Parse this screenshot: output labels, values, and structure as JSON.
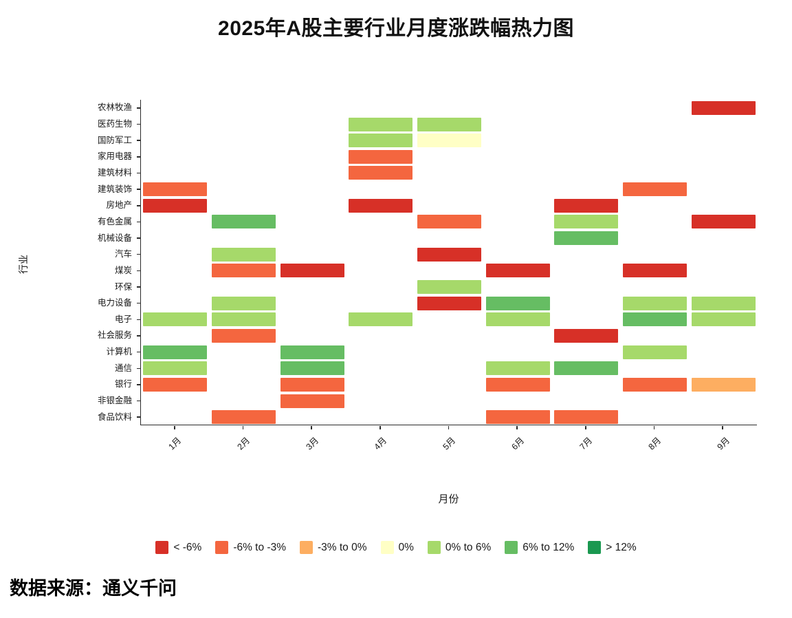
{
  "page": {
    "title": "2025年A股主要行业月度涨跌幅热力图",
    "source_note": "数据来源：通义千问"
  },
  "chart_data": {
    "type": "heatmap",
    "title": "2025年A股主要行业月度涨跌幅热力图",
    "xlabel": "月份",
    "ylabel": "行业",
    "x_categories": [
      "1月",
      "2月",
      "3月",
      "4月",
      "5月",
      "6月",
      "7月",
      "8月",
      "9月"
    ],
    "y_categories": [
      "农林牧渔",
      "医药生物",
      "国防军工",
      "家用电器",
      "建筑材料",
      "建筑装饰",
      "房地产",
      "有色金属",
      "机械设备",
      "汽车",
      "煤炭",
      "环保",
      "电力设备",
      "电子",
      "社会服务",
      "计算机",
      "通信",
      "银行",
      "非银金融",
      "食品饮料"
    ],
    "legend_position": "bottom",
    "grid": false,
    "empty_cell_color": "#ffffff",
    "legend": [
      {
        "label": "< -6%",
        "color": "#d73027"
      },
      {
        "label": "-6% to -3%",
        "color": "#f4663f"
      },
      {
        "label": "-3% to 0%",
        "color": "#fdae61"
      },
      {
        "label": "0%",
        "color": "#ffffc5"
      },
      {
        "label": "0% to 6%",
        "color": "#a6d96a"
      },
      {
        "label": "6% to 12%",
        "color": "#66bd63"
      },
      {
        "label": "> 12%",
        "color": "#1a9850"
      }
    ],
    "cells": [
      {
        "industry": "农林牧渔",
        "month": "9月",
        "range": "< -6%"
      },
      {
        "industry": "医药生物",
        "month": "4月",
        "range": "0% to 6%"
      },
      {
        "industry": "医药生物",
        "month": "5月",
        "range": "0% to 6%"
      },
      {
        "industry": "国防军工",
        "month": "4月",
        "range": "0% to 6%"
      },
      {
        "industry": "国防军工",
        "month": "5月",
        "range": "0%"
      },
      {
        "industry": "家用电器",
        "month": "4月",
        "range": "-6% to -3%"
      },
      {
        "industry": "建筑材料",
        "month": "4月",
        "range": "-6% to -3%"
      },
      {
        "industry": "建筑装饰",
        "month": "1月",
        "range": "-6% to -3%"
      },
      {
        "industry": "建筑装饰",
        "month": "8月",
        "range": "-6% to -3%"
      },
      {
        "industry": "房地产",
        "month": "1月",
        "range": "< -6%"
      },
      {
        "industry": "房地产",
        "month": "4月",
        "range": "< -6%"
      },
      {
        "industry": "房地产",
        "month": "7月",
        "range": "< -6%"
      },
      {
        "industry": "有色金属",
        "month": "2月",
        "range": "6% to 12%"
      },
      {
        "industry": "有色金属",
        "month": "5月",
        "range": "-6% to -3%"
      },
      {
        "industry": "有色金属",
        "month": "7月",
        "range": "0% to 6%"
      },
      {
        "industry": "有色金属",
        "month": "9月",
        "range": "< -6%"
      },
      {
        "industry": "机械设备",
        "month": "7月",
        "range": "6% to 12%"
      },
      {
        "industry": "汽车",
        "month": "2月",
        "range": "0% to 6%"
      },
      {
        "industry": "汽车",
        "month": "5月",
        "range": "< -6%"
      },
      {
        "industry": "煤炭",
        "month": "2月",
        "range": "-6% to -3%"
      },
      {
        "industry": "煤炭",
        "month": "3月",
        "range": "< -6%"
      },
      {
        "industry": "煤炭",
        "month": "6月",
        "range": "< -6%"
      },
      {
        "industry": "煤炭",
        "month": "8月",
        "range": "< -6%"
      },
      {
        "industry": "环保",
        "month": "5月",
        "range": "0% to 6%"
      },
      {
        "industry": "电力设备",
        "month": "2月",
        "range": "0% to 6%"
      },
      {
        "industry": "电力设备",
        "month": "5月",
        "range": "< -6%"
      },
      {
        "industry": "电力设备",
        "month": "6月",
        "range": "6% to 12%"
      },
      {
        "industry": "电力设备",
        "month": "8月",
        "range": "0% to 6%"
      },
      {
        "industry": "电力设备",
        "month": "9月",
        "range": "0% to 6%"
      },
      {
        "industry": "电子",
        "month": "1月",
        "range": "0% to 6%"
      },
      {
        "industry": "电子",
        "month": "2月",
        "range": "0% to 6%"
      },
      {
        "industry": "电子",
        "month": "4月",
        "range": "0% to 6%"
      },
      {
        "industry": "电子",
        "month": "6月",
        "range": "0% to 6%"
      },
      {
        "industry": "电子",
        "month": "8月",
        "range": "6% to 12%"
      },
      {
        "industry": "电子",
        "month": "9月",
        "range": "0% to 6%"
      },
      {
        "industry": "社会服务",
        "month": "2月",
        "range": "-6% to -3%"
      },
      {
        "industry": "社会服务",
        "month": "7月",
        "range": "< -6%"
      },
      {
        "industry": "计算机",
        "month": "1月",
        "range": "6% to 12%"
      },
      {
        "industry": "计算机",
        "month": "3月",
        "range": "6% to 12%"
      },
      {
        "industry": "计算机",
        "month": "8月",
        "range": "0% to 6%"
      },
      {
        "industry": "通信",
        "month": "1月",
        "range": "0% to 6%"
      },
      {
        "industry": "通信",
        "month": "3月",
        "range": "6% to 12%"
      },
      {
        "industry": "通信",
        "month": "6月",
        "range": "0% to 6%"
      },
      {
        "industry": "通信",
        "month": "7月",
        "range": "6% to 12%"
      },
      {
        "industry": "银行",
        "month": "1月",
        "range": "-6% to -3%"
      },
      {
        "industry": "银行",
        "month": "3月",
        "range": "-6% to -3%"
      },
      {
        "industry": "银行",
        "month": "6月",
        "range": "-6% to -3%"
      },
      {
        "industry": "银行",
        "month": "8月",
        "range": "-6% to -3%"
      },
      {
        "industry": "银行",
        "month": "9月",
        "range": "-3% to 0%"
      },
      {
        "industry": "非银金融",
        "month": "3月",
        "range": "-6% to -3%"
      },
      {
        "industry": "食品饮料",
        "month": "2月",
        "range": "-6% to -3%"
      },
      {
        "industry": "食品饮料",
        "month": "6月",
        "range": "-6% to -3%"
      },
      {
        "industry": "食品饮料",
        "month": "7月",
        "range": "-6% to -3%"
      }
    ]
  }
}
